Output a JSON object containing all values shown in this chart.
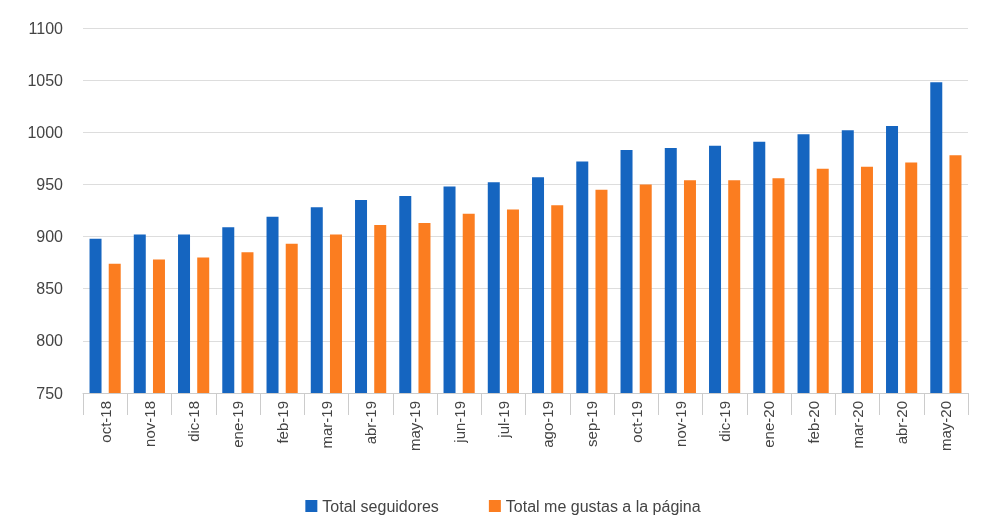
{
  "chart_data": {
    "type": "bar",
    "categories": [
      "oct-18",
      "nov-18",
      "dic-18",
      "ene-19",
      "feb-19",
      "mar-19",
      "abr-19",
      "may-19",
      "jun-19",
      "jul-19",
      "ago-19",
      "sep-19",
      "oct-19",
      "nov-19",
      "dic-19",
      "ene-20",
      "feb-20",
      "mar-20",
      "abr-20",
      "may-20"
    ],
    "series": [
      {
        "name": "Total seguidores",
        "color": "#1565c0",
        "values": [
          898,
          902,
          902,
          909,
          919,
          928,
          935,
          939,
          948,
          952,
          957,
          972,
          983,
          985,
          987,
          991,
          998,
          1002,
          1006,
          1048
        ]
      },
      {
        "name": "Total me gustas a la página",
        "color": "#fb7d20",
        "values": [
          874,
          878,
          880,
          885,
          893,
          902,
          911,
          913,
          922,
          926,
          930,
          945,
          950,
          954,
          954,
          956,
          965,
          967,
          971,
          978
        ]
      }
    ],
    "ylim": [
      750,
      1100
    ],
    "yticks": [
      750,
      800,
      850,
      900,
      950,
      1000,
      1050,
      1100
    ],
    "grid": "y",
    "legend": "bottom"
  }
}
